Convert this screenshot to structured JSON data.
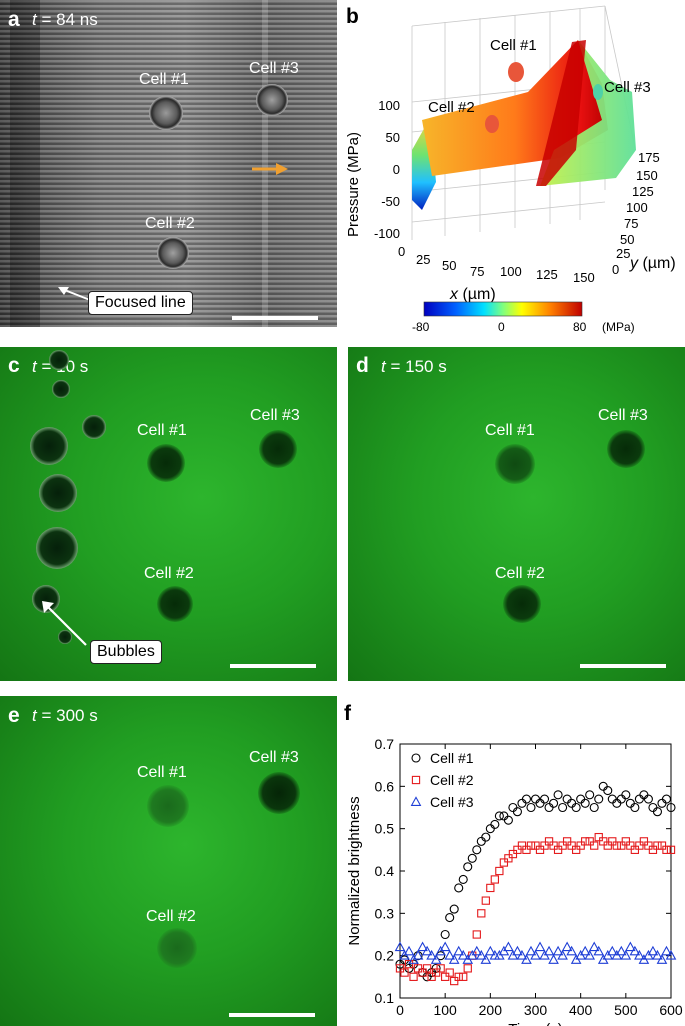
{
  "panel_a": {
    "label": "a",
    "time_var": "t",
    "time_rest": " = 84 ns",
    "cells": [
      "Cell #1",
      "Cell #2",
      "Cell #3"
    ],
    "callout": "Focused line"
  },
  "panel_b": {
    "label": "b",
    "z_axis_label": "Pressure (MPa)",
    "z_ticks": [
      "100",
      "50",
      "0",
      "-50",
      "-100"
    ],
    "x_axis_var": "x",
    "x_axis_unit": " (µm)",
    "x_ticks": [
      "0",
      "25",
      "50",
      "75",
      "100",
      "125",
      "150"
    ],
    "y_axis_var": "y",
    "y_axis_unit": " (µm)",
    "y_ticks": [
      "175",
      "150",
      "125",
      "100",
      "75",
      "50",
      "25",
      "0"
    ],
    "cells": [
      "Cell #1",
      "Cell #2",
      "Cell #3"
    ],
    "colorbar_ticks": [
      "-80",
      "0",
      "80"
    ],
    "colorbar_unit": "(MPa)"
  },
  "panel_c": {
    "label": "c",
    "time_var": "t",
    "time_rest": " = 10 s",
    "cells": [
      "Cell #1",
      "Cell #2",
      "Cell #3"
    ],
    "callout": "Bubbles"
  },
  "panel_d": {
    "label": "d",
    "time_var": "t",
    "time_rest": " = 150 s",
    "cells": [
      "Cell #1",
      "Cell #2",
      "Cell #3"
    ]
  },
  "panel_e": {
    "label": "e",
    "time_var": "t",
    "time_rest": " = 300 s",
    "cells": [
      "Cell #1",
      "Cell #2",
      "Cell #3"
    ]
  },
  "panel_f": {
    "label": "f"
  },
  "chart_data": {
    "type": "scatter",
    "xlabel": "Time (s)",
    "ylabel": "Normalized brightness",
    "xlim": [
      0,
      600
    ],
    "ylim": [
      0.1,
      0.7
    ],
    "x_ticks": [
      0,
      100,
      200,
      300,
      400,
      500,
      600
    ],
    "y_ticks": [
      0.1,
      0.2,
      0.3,
      0.4,
      0.5,
      0.6,
      0.7
    ],
    "legend_position": "top-left",
    "series": [
      {
        "name": "Cell #1",
        "marker": "circle",
        "color": "#000000",
        "x": [
          0,
          10,
          20,
          30,
          40,
          50,
          60,
          70,
          80,
          90,
          100,
          110,
          120,
          130,
          140,
          150,
          160,
          170,
          180,
          190,
          200,
          210,
          220,
          230,
          240,
          250,
          260,
          270,
          280,
          290,
          300,
          310,
          320,
          330,
          340,
          350,
          360,
          370,
          380,
          390,
          400,
          410,
          420,
          430,
          440,
          450,
          460,
          470,
          480,
          490,
          500,
          510,
          520,
          530,
          540,
          550,
          560,
          570,
          580,
          590,
          600
        ],
        "y": [
          0.18,
          0.19,
          0.17,
          0.18,
          0.2,
          0.16,
          0.15,
          0.16,
          0.17,
          0.2,
          0.25,
          0.29,
          0.31,
          0.36,
          0.38,
          0.41,
          0.43,
          0.45,
          0.47,
          0.48,
          0.5,
          0.51,
          0.53,
          0.53,
          0.52,
          0.55,
          0.54,
          0.56,
          0.57,
          0.55,
          0.57,
          0.56,
          0.57,
          0.55,
          0.56,
          0.58,
          0.55,
          0.57,
          0.56,
          0.55,
          0.57,
          0.56,
          0.58,
          0.55,
          0.57,
          0.6,
          0.59,
          0.57,
          0.56,
          0.57,
          0.58,
          0.56,
          0.55,
          0.57,
          0.58,
          0.57,
          0.55,
          0.54,
          0.56,
          0.57,
          0.55
        ]
      },
      {
        "name": "Cell #2",
        "marker": "square",
        "color": "#e41a1c",
        "x": [
          0,
          10,
          20,
          30,
          40,
          50,
          60,
          70,
          80,
          90,
          100,
          110,
          120,
          130,
          140,
          150,
          160,
          170,
          180,
          190,
          200,
          210,
          220,
          230,
          240,
          250,
          260,
          270,
          280,
          290,
          300,
          310,
          320,
          330,
          340,
          350,
          360,
          370,
          380,
          390,
          400,
          410,
          420,
          430,
          440,
          450,
          460,
          470,
          480,
          490,
          500,
          510,
          520,
          530,
          540,
          550,
          560,
          570,
          580,
          590,
          600
        ],
        "y": [
          0.17,
          0.16,
          0.18,
          0.15,
          0.17,
          0.16,
          0.17,
          0.15,
          0.16,
          0.17,
          0.15,
          0.16,
          0.14,
          0.15,
          0.15,
          0.17,
          0.2,
          0.25,
          0.3,
          0.33,
          0.36,
          0.38,
          0.4,
          0.42,
          0.43,
          0.44,
          0.45,
          0.46,
          0.45,
          0.46,
          0.46,
          0.45,
          0.46,
          0.47,
          0.46,
          0.45,
          0.46,
          0.47,
          0.46,
          0.45,
          0.46,
          0.47,
          0.47,
          0.46,
          0.48,
          0.47,
          0.46,
          0.47,
          0.46,
          0.46,
          0.47,
          0.46,
          0.45,
          0.46,
          0.47,
          0.46,
          0.45,
          0.46,
          0.46,
          0.45,
          0.45
        ]
      },
      {
        "name": "Cell #3",
        "marker": "triangle",
        "color": "#1f3fd6",
        "x": [
          0,
          10,
          20,
          30,
          40,
          50,
          60,
          70,
          80,
          90,
          100,
          110,
          120,
          130,
          140,
          150,
          160,
          170,
          180,
          190,
          200,
          210,
          220,
          230,
          240,
          250,
          260,
          270,
          280,
          290,
          300,
          310,
          320,
          330,
          340,
          350,
          360,
          370,
          380,
          390,
          400,
          410,
          420,
          430,
          440,
          450,
          460,
          470,
          480,
          490,
          500,
          510,
          520,
          530,
          540,
          550,
          560,
          570,
          580,
          590,
          600
        ],
        "y": [
          0.22,
          0.2,
          0.21,
          0.19,
          0.2,
          0.22,
          0.21,
          0.2,
          0.19,
          0.21,
          0.22,
          0.2,
          0.19,
          0.21,
          0.2,
          0.19,
          0.2,
          0.21,
          0.2,
          0.19,
          0.21,
          0.2,
          0.2,
          0.21,
          0.22,
          0.2,
          0.21,
          0.2,
          0.19,
          0.21,
          0.2,
          0.22,
          0.2,
          0.21,
          0.19,
          0.21,
          0.2,
          0.22,
          0.21,
          0.19,
          0.2,
          0.21,
          0.2,
          0.22,
          0.21,
          0.19,
          0.2,
          0.21,
          0.2,
          0.21,
          0.2,
          0.22,
          0.21,
          0.2,
          0.19,
          0.2,
          0.21,
          0.2,
          0.19,
          0.21,
          0.2
        ]
      }
    ]
  },
  "colors": {
    "fluor_green": "#22a822",
    "fluor_dark": "#0a3b0c",
    "micrograph_gray": "#6e6e6e",
    "orange_arrow": "#f0a030"
  }
}
